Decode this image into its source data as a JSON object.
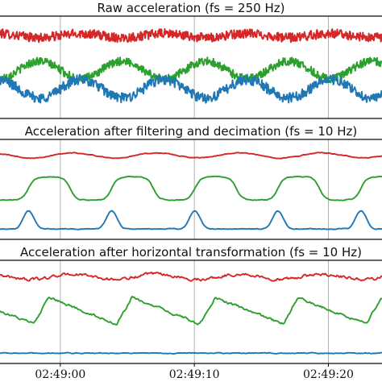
{
  "chart_data": [
    {
      "type": "line",
      "title": "Raw acceleration (fs = 250 Hz)",
      "grid": "vertical",
      "xticks": [
        "02:49:00",
        "02:49:10",
        "02:49:20"
      ],
      "xlim": [
        -4.5,
        24.0
      ],
      "ylim": [
        -1.0,
        1.0
      ],
      "series": [
        {
          "color": "#d62728",
          "offset": 0.62,
          "amplitude": 0.04,
          "noise": 0.09,
          "period": 6.2,
          "phase": 0.0,
          "shape": "wave"
        },
        {
          "color": "#2ca02c",
          "offset": -0.05,
          "amplitude": 0.17,
          "noise": 0.08,
          "period": 6.2,
          "phase": 3.14,
          "shape": "wave"
        },
        {
          "color": "#1f77b4",
          "offset": -0.42,
          "amplitude": 0.18,
          "noise": 0.1,
          "period": 6.2,
          "phase": 0.0,
          "shape": "wave"
        }
      ]
    },
    {
      "type": "line",
      "title": "Acceleration after filtering and decimation (fs = 10 Hz)",
      "grid": "vertical",
      "xticks": [
        "02:49:00",
        "02:49:10",
        "02:49:20"
      ],
      "xlim": [
        -4.5,
        24.0
      ],
      "ylim": [
        -1.0,
        1.0
      ],
      "series": [
        {
          "color": "#d62728",
          "offset": 0.68,
          "amplitude": 0.05,
          "noise": 0.01,
          "period": 6.2,
          "phase": 0.6,
          "shape": "wave"
        },
        {
          "color": "#2ca02c",
          "offset": 0.02,
          "amplitude": 0.24,
          "noise": 0.01,
          "period": 6.2,
          "phase": 2.4,
          "shape": "plateau"
        },
        {
          "color": "#1f77b4",
          "offset": -0.72,
          "amplitude": 0.18,
          "noise": 0.01,
          "period": 6.2,
          "phase": 2.4,
          "shape": "bump"
        }
      ]
    },
    {
      "type": "line",
      "title": "Acceleration after horizontal transformation (fs = 10 Hz)",
      "grid": "vertical",
      "xticks": [
        "02:49:00",
        "02:49:10",
        "02:49:20"
      ],
      "xlim": [
        -4.5,
        24.0
      ],
      "ylim": [
        -1.0,
        1.0
      ],
      "series": [
        {
          "color": "#d62728",
          "offset": 0.68,
          "amplitude": 0.05,
          "noise": 0.035,
          "period": 6.2,
          "phase": 0.6,
          "shape": "wave"
        },
        {
          "color": "#2ca02c",
          "offset": 0.02,
          "amplitude": 0.32,
          "noise": 0.03,
          "period": 6.2,
          "phase": 2.0,
          "shape": "sawtooth"
        },
        {
          "color": "#1f77b4",
          "offset": -0.8,
          "amplitude": 0.03,
          "noise": 0.01,
          "period": 6.2,
          "phase": 0.0,
          "shape": "flat"
        }
      ]
    }
  ]
}
